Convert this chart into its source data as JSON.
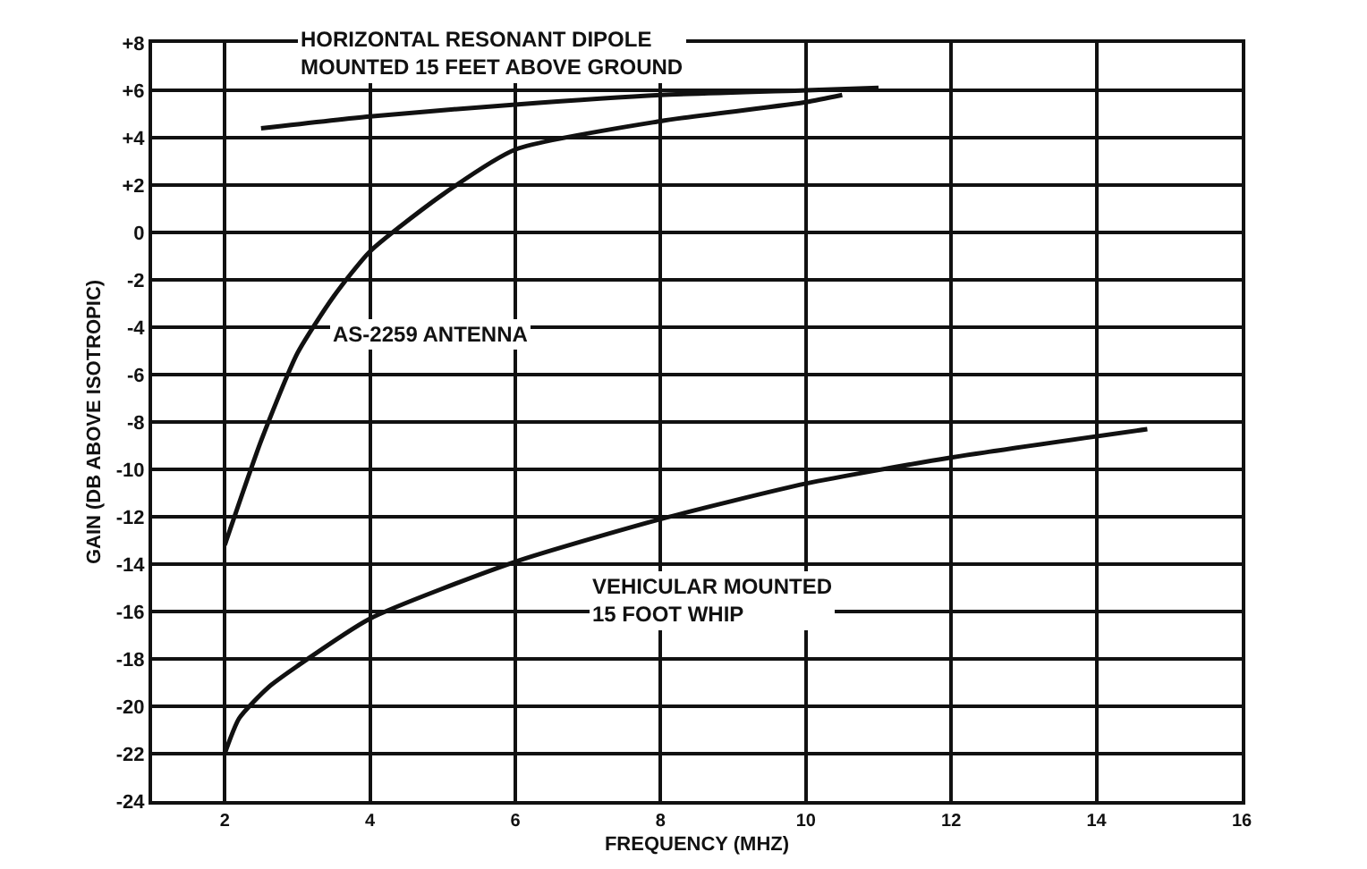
{
  "chart_data": {
    "type": "line",
    "xlabel": "FREQUENCY (MHZ)",
    "ylabel": "GAIN (DB ABOVE ISOTROPIC)",
    "xlim": [
      1,
      16
    ],
    "xticks": [
      2,
      4,
      6,
      8,
      10,
      12,
      14,
      16
    ],
    "ylim": [
      -24,
      8
    ],
    "yticks": [
      {
        "value": 8,
        "label": "+8"
      },
      {
        "value": 6,
        "label": "+6"
      },
      {
        "value": 4,
        "label": "+4"
      },
      {
        "value": 2,
        "label": "+2"
      },
      0,
      -2,
      -4,
      -6,
      -8,
      -10,
      -12,
      -14,
      -16,
      -18,
      -20,
      -22,
      -24
    ],
    "grid": true,
    "legend": false,
    "marker": "none",
    "line_style": "solid",
    "series": [
      {
        "name": "HORIZONTAL RESONANT DIPOLE MOUNTED 15 FEET ABOVE GROUND",
        "color": "#111111",
        "x": [
          2.5,
          4,
          6,
          8,
          10,
          11
        ],
        "values": [
          4.4,
          4.9,
          5.4,
          5.8,
          6.0,
          6.1
        ]
      },
      {
        "name": "AS-2259 ANTENNA",
        "color": "#111111",
        "x": [
          2,
          2.5,
          3,
          3.5,
          4,
          5,
          6,
          8,
          10,
          10.5
        ],
        "values": [
          -13.2,
          -8.8,
          -5.1,
          -2.7,
          -0.8,
          1.6,
          3.5,
          4.7,
          5.5,
          5.8
        ]
      },
      {
        "name": "VEHICULAR MOUNTED 15 FOOT WHIP",
        "color": "#111111",
        "x": [
          2,
          2.2,
          2.6,
          3,
          4,
          6,
          8,
          10,
          12,
          14.7
        ],
        "values": [
          -22,
          -20.5,
          -19.2,
          -18.3,
          -16.3,
          -13.9,
          -12.1,
          -10.6,
          -9.5,
          -8.3
        ]
      }
    ]
  }
}
